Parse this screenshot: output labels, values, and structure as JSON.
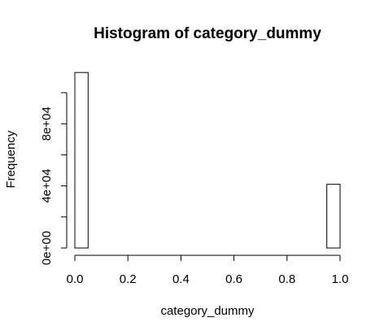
{
  "chart_data": {
    "type": "bar",
    "title": "Histogram of category_dummy",
    "xlabel": "category_dummy",
    "ylabel": "Frequency",
    "xlim": [
      0,
      1
    ],
    "ylim": [
      0,
      110000
    ],
    "bins": [
      {
        "x0": 0.0,
        "x1": 0.05,
        "value": 113000
      },
      {
        "x0": 0.05,
        "x1": 0.1,
        "value": 0
      },
      {
        "x0": 0.1,
        "x1": 0.15,
        "value": 0
      },
      {
        "x0": 0.15,
        "x1": 0.2,
        "value": 0
      },
      {
        "x0": 0.2,
        "x1": 0.25,
        "value": 0
      },
      {
        "x0": 0.25,
        "x1": 0.3,
        "value": 0
      },
      {
        "x0": 0.3,
        "x1": 0.35,
        "value": 0
      },
      {
        "x0": 0.35,
        "x1": 0.4,
        "value": 0
      },
      {
        "x0": 0.4,
        "x1": 0.45,
        "value": 0
      },
      {
        "x0": 0.45,
        "x1": 0.5,
        "value": 0
      },
      {
        "x0": 0.5,
        "x1": 0.55,
        "value": 0
      },
      {
        "x0": 0.55,
        "x1": 0.6,
        "value": 0
      },
      {
        "x0": 0.6,
        "x1": 0.65,
        "value": 0
      },
      {
        "x0": 0.65,
        "x1": 0.7,
        "value": 0
      },
      {
        "x0": 0.7,
        "x1": 0.75,
        "value": 0
      },
      {
        "x0": 0.75,
        "x1": 0.8,
        "value": 0
      },
      {
        "x0": 0.8,
        "x1": 0.85,
        "value": 0
      },
      {
        "x0": 0.85,
        "x1": 0.9,
        "value": 0
      },
      {
        "x0": 0.9,
        "x1": 0.95,
        "value": 0
      },
      {
        "x0": 0.95,
        "x1": 1.0,
        "value": 41000
      }
    ],
    "x_ticks": [
      {
        "value": 0.0,
        "label": "0.0"
      },
      {
        "value": 0.2,
        "label": "0.2"
      },
      {
        "value": 0.4,
        "label": "0.4"
      },
      {
        "value": 0.6,
        "label": "0.6"
      },
      {
        "value": 0.8,
        "label": "0.8"
      },
      {
        "value": 1.0,
        "label": "1.0"
      }
    ],
    "y_ticks": [
      {
        "value": 0,
        "label": "0e+00"
      },
      {
        "value": 20000,
        "label": ""
      },
      {
        "value": 40000,
        "label": "4e+04"
      },
      {
        "value": 60000,
        "label": ""
      },
      {
        "value": 80000,
        "label": "8e+04"
      },
      {
        "value": 100000,
        "label": ""
      }
    ],
    "grid": false,
    "bar_fill": "#ffffff",
    "bar_stroke": "#000000"
  }
}
